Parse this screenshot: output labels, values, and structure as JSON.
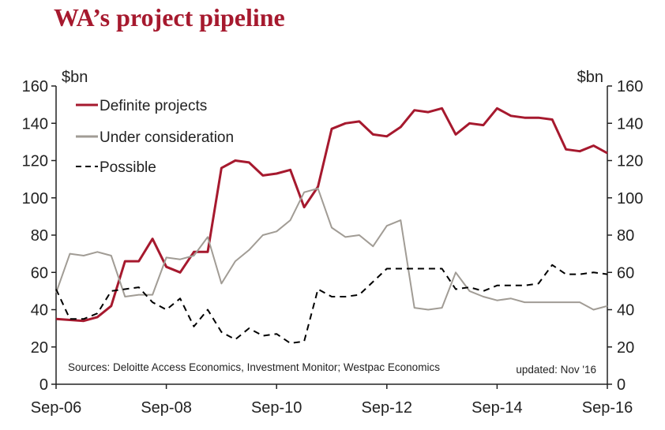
{
  "chart_data": {
    "type": "line",
    "title": "WA’s project pipeline",
    "y_unit_left": "$bn",
    "y_unit_right": "$bn",
    "ylim": [
      0,
      160
    ],
    "yticks": [
      0,
      20,
      40,
      60,
      80,
      100,
      120,
      140,
      160
    ],
    "x_start": 2006.75,
    "x_step": 0.25,
    "x_tick_labels": [
      "Sep-06",
      "Sep-08",
      "Sep-10",
      "Sep-12",
      "Sep-14",
      "Sep-16"
    ],
    "x_tick_values": [
      2006.75,
      2008.75,
      2010.75,
      2012.75,
      2014.75,
      2016.75
    ],
    "legend_position": "top-left",
    "grid": false,
    "series": [
      {
        "name": "Definite projects",
        "color": "#a6192e",
        "style": "solid",
        "values": [
          35,
          34.5,
          34,
          36,
          42,
          66,
          66,
          78,
          63,
          60,
          71,
          71,
          116,
          120,
          119,
          112,
          113,
          115,
          95,
          106,
          137,
          140,
          141,
          134,
          133,
          138,
          147,
          146,
          148,
          134,
          140,
          139,
          148,
          144,
          143,
          143,
          142,
          126,
          125,
          128,
          124
        ]
      },
      {
        "name": "Under consideration",
        "color": "#a19c95",
        "style": "solid",
        "values": [
          49,
          70,
          69,
          71,
          69,
          47,
          48,
          48,
          68,
          67,
          69,
          79,
          54,
          66,
          72,
          80,
          82,
          88,
          103,
          105,
          84,
          79,
          80,
          74,
          85,
          88,
          41,
          40,
          41,
          60,
          50,
          47,
          45,
          46,
          44,
          44,
          44,
          44,
          44,
          40,
          42
        ]
      },
      {
        "name": "Possible",
        "color": "#000000",
        "style": "dashed",
        "values": [
          51,
          35,
          35,
          38,
          50,
          51,
          52,
          44,
          40,
          46,
          31,
          40,
          28,
          24,
          30,
          26,
          27,
          22,
          23,
          51,
          47,
          47,
          48,
          55,
          62,
          62,
          62,
          62,
          62,
          51,
          52,
          50,
          53,
          53,
          53,
          54,
          64,
          59,
          59,
          60,
          59
        ]
      }
    ],
    "annotations": {
      "sources": "Sources: Deloitte Access Economics, Investment Monitor; Westpac Economics",
      "updated": "updated:  Nov '16"
    }
  }
}
